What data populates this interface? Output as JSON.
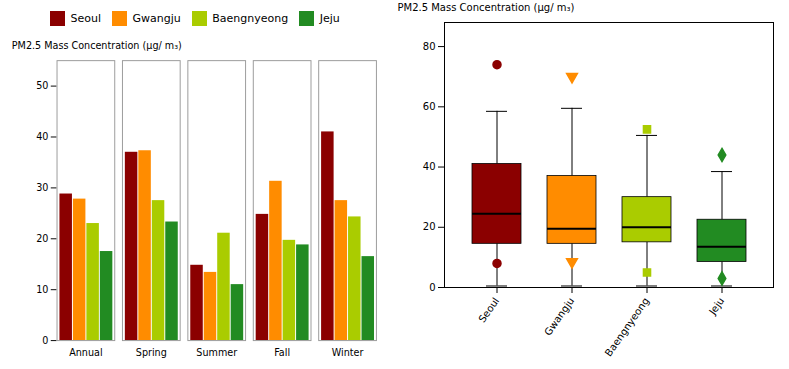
{
  "chart_data": [
    {
      "type": "bar",
      "ylabel": "PM2.5 Mass Concentration (μg/ m₃)",
      "categories": [
        "Annual",
        "Spring",
        "Summer",
        "Fall",
        "Winter"
      ],
      "series": [
        {
          "name": "Seoul",
          "color": "#8B0000",
          "values": [
            28.8,
            37.0,
            14.8,
            24.8,
            41.0
          ]
        },
        {
          "name": "Gwangju",
          "color": "#FF8C00",
          "values": [
            27.8,
            37.3,
            13.4,
            31.3,
            27.5
          ]
        },
        {
          "name": "Baengnyeong",
          "color": "#AACC00",
          "values": [
            23.0,
            27.5,
            21.1,
            19.7,
            24.3
          ]
        },
        {
          "name": "Jeju",
          "color": "#228B22",
          "values": [
            17.5,
            23.3,
            11.0,
            18.8,
            16.5
          ]
        }
      ],
      "ylim": [
        0,
        55
      ],
      "yticks": [
        0,
        10,
        20,
        30,
        40,
        50
      ],
      "legend": "upper left"
    },
    {
      "type": "box",
      "ylabel": "PM2.5 Mass Concentration (μg/ m₃)",
      "categories": [
        "Seoul",
        "Gwangju",
        "Baengnyeong",
        "Jeju"
      ],
      "series": [
        {
          "name": "Seoul",
          "color": "#8B0000",
          "marker": "circle",
          "q1": 14.5,
          "median": 24.5,
          "q3": 41.0,
          "whislo": 0.5,
          "whishi": 58.5,
          "fliers_high": [
            74.0
          ],
          "fliers_low": [
            8.0
          ]
        },
        {
          "name": "Gwangju",
          "color": "#FF8C00",
          "marker": "triangle_down",
          "q1": 14.5,
          "median": 19.5,
          "q3": 37.0,
          "whislo": 0.5,
          "whishi": 59.5,
          "fliers_high": [
            70.0
          ],
          "fliers_low": [
            8.5
          ]
        },
        {
          "name": "Baengnyeong",
          "color": "#AACC00",
          "marker": "square",
          "q1": 15.0,
          "median": 20.0,
          "q3": 30.0,
          "whislo": 0.5,
          "whishi": 50.5,
          "fliers_high": [
            52.5
          ],
          "fliers_low": [
            5.0
          ]
        },
        {
          "name": "Jeju",
          "color": "#228B22",
          "marker": "diamond",
          "q1": 8.5,
          "median": 13.5,
          "q3": 22.5,
          "whislo": 0.5,
          "whishi": 38.5,
          "fliers_high": [
            44.0
          ],
          "fliers_low": [
            3.0
          ]
        }
      ],
      "ylim": [
        0,
        88
      ],
      "yticks": [
        0,
        20,
        40,
        60,
        80
      ]
    }
  ]
}
